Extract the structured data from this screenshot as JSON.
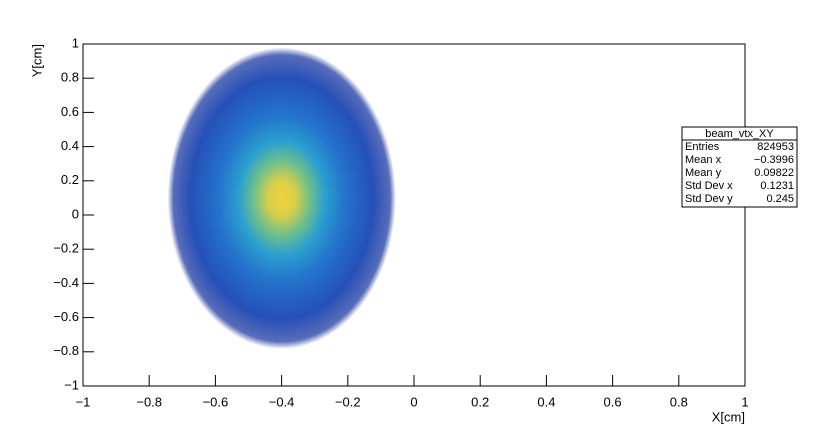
{
  "chart_data": {
    "type": "heatmap2d",
    "x_label": "X[cm]",
    "y_label": "Y[cm]",
    "xlim": [
      -1,
      1
    ],
    "ylim": [
      -1,
      1
    ],
    "xticks": [
      {
        "value": -1,
        "label": "−1"
      },
      {
        "value": -0.8,
        "label": "−0.8"
      },
      {
        "value": -0.6,
        "label": "−0.6"
      },
      {
        "value": -0.4,
        "label": "−0.4"
      },
      {
        "value": -0.2,
        "label": "−0.2"
      },
      0,
      0.2,
      0.4,
      0.6,
      0.8,
      1
    ],
    "yticks": [
      {
        "value": -1,
        "label": "−1"
      },
      {
        "value": -0.8,
        "label": "−0.8"
      },
      {
        "value": -0.6,
        "label": "−0.6"
      },
      {
        "value": -0.4,
        "label": "−0.4"
      },
      {
        "value": -0.2,
        "label": "−0.2"
      },
      0,
      0.2,
      0.4,
      0.6,
      0.8,
      1
    ],
    "stats": {
      "title": "beam_vtx_XY",
      "rows": [
        {
          "name": "Entries",
          "value": 824953
        },
        {
          "name": "Mean x",
          "value": {
            "value": -0.3996,
            "label": "−0.3996"
          }
        },
        {
          "name": "Mean y",
          "value": 0.09822
        },
        {
          "name": "Std Dev x",
          "value": 0.1231
        },
        {
          "name": "Std Dev y",
          "value": 0.245
        }
      ]
    }
  }
}
